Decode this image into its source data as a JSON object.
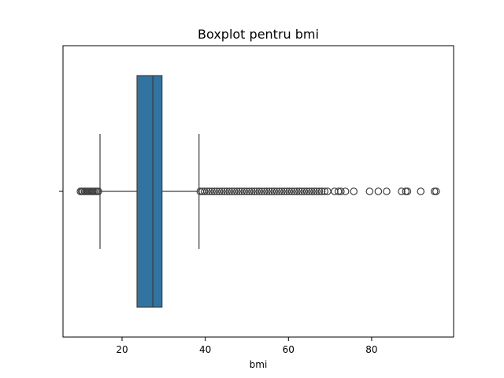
{
  "chart_data": {
    "type": "boxplot",
    "title": "Boxplot pentru bmi",
    "xlabel": "bmi",
    "ylabel": "",
    "xlim": [
      5.8,
      99.7
    ],
    "xticks": [
      20,
      40,
      60,
      80
    ],
    "grid": false,
    "legend": "none",
    "box": {
      "whisker_low": 14.7,
      "q1": 23.6,
      "median": 27.4,
      "q3": 29.6,
      "whisker_high": 38.5,
      "color": "#3274a1"
    },
    "outliers_low": [
      10.0,
      10.3,
      10.6,
      11.0,
      11.3,
      11.7,
      12.0,
      12.3,
      12.7,
      13.0,
      13.3,
      13.7,
      14.0,
      14.3
    ],
    "outliers_high": [
      38.8,
      39.3,
      39.8,
      40.4,
      41.0,
      41.6,
      42.2,
      42.8,
      43.4,
      44.0,
      44.6,
      45.2,
      45.8,
      46.4,
      47.0,
      47.6,
      48.2,
      48.8,
      49.4,
      50.0,
      50.6,
      51.2,
      51.8,
      52.4,
      53.0,
      53.6,
      54.2,
      54.8,
      55.4,
      56.0,
      56.6,
      57.2,
      57.8,
      58.4,
      59.0,
      59.6,
      60.2,
      60.8,
      61.4,
      62.0,
      62.6,
      63.2,
      63.8,
      64.4,
      65.0,
      65.6,
      66.2,
      66.8,
      67.4,
      68.0,
      68.7,
      69.4,
      71.1,
      72.0,
      72.6,
      73.7,
      75.7,
      79.5,
      81.6,
      83.6,
      87.2,
      88.2,
      88.6,
      91.8,
      95.1,
      95.5
    ]
  }
}
